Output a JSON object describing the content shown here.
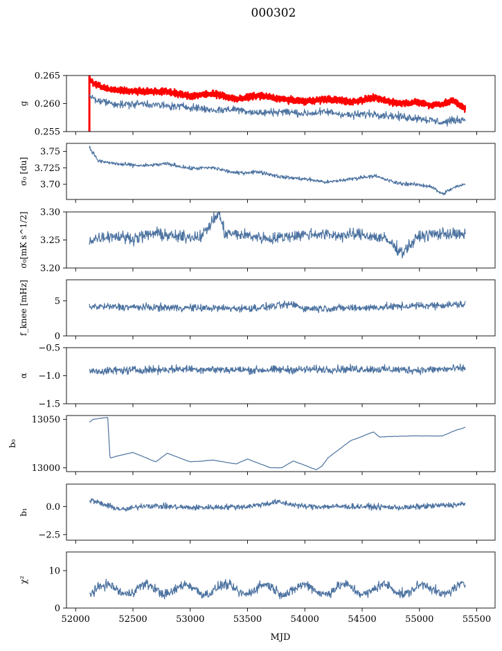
{
  "figure": {
    "title": "000302",
    "xlabel": "MJD",
    "xlim": [
      51920,
      55660
    ],
    "xticks": [
      52000,
      52500,
      53000,
      53500,
      54000,
      54500,
      55000,
      55500
    ],
    "line_color": "#4c72a0",
    "highlight_color": "#ff0000",
    "x_start": 52120,
    "x_end": 55400
  },
  "chart_data": [
    {
      "type": "line",
      "panel": "g",
      "ylabel": "g",
      "ylim": [
        0.255,
        0.265
      ],
      "yticks": [
        0.255,
        0.26,
        0.265
      ],
      "ytick_labels": [
        "0.255",
        "0.260",
        "0.265"
      ],
      "series": [
        {
          "role": "red",
          "x": [
            52120,
            52160,
            52300,
            52500,
            52800,
            53000,
            53200,
            53400,
            53600,
            53800,
            54000,
            54200,
            54400,
            54600,
            54800,
            55000,
            55100,
            55200,
            55300,
            55400
          ],
          "values": [
            0.2645,
            0.2635,
            0.2625,
            0.2622,
            0.2621,
            0.2613,
            0.2618,
            0.2608,
            0.2614,
            0.2608,
            0.2604,
            0.2608,
            0.2603,
            0.261,
            0.2601,
            0.2602,
            0.2597,
            0.2599,
            0.2605,
            0.259
          ]
        },
        {
          "role": "blue",
          "x": [
            52120,
            52200,
            52400,
            52600,
            52800,
            53000,
            53200,
            53400,
            53600,
            53800,
            54000,
            54200,
            54400,
            54600,
            54800,
            55000,
            55200,
            55300,
            55400
          ],
          "values": [
            0.2613,
            0.2605,
            0.2598,
            0.26,
            0.2595,
            0.2594,
            0.2588,
            0.259,
            0.2583,
            0.2586,
            0.2582,
            0.2585,
            0.2579,
            0.2582,
            0.2577,
            0.2574,
            0.2566,
            0.257,
            0.2572
          ]
        }
      ]
    },
    {
      "type": "line",
      "panel": "sigma0_du",
      "ylabel": "σ₀ [du]",
      "ylim": [
        3.677,
        3.762
      ],
      "yticks": [
        3.7,
        3.725,
        3.75
      ],
      "ytick_labels": [
        "3.70",
        "3.725",
        "3.75"
      ],
      "series": [
        {
          "x": [
            52120,
            52200,
            52400,
            52600,
            52800,
            53000,
            53200,
            53400,
            53600,
            53800,
            54000,
            54200,
            54400,
            54600,
            54800,
            55000,
            55100,
            55200,
            55300,
            55400
          ],
          "values": [
            3.756,
            3.735,
            3.73,
            3.728,
            3.731,
            3.724,
            3.725,
            3.717,
            3.719,
            3.711,
            3.708,
            3.703,
            3.708,
            3.713,
            3.702,
            3.699,
            3.697,
            3.685,
            3.695,
            3.7
          ]
        }
      ]
    },
    {
      "type": "line",
      "panel": "sigma0_mK",
      "ylabel": "σ₀[mK s^1/2]",
      "ylim": [
        3.2,
        3.3
      ],
      "yticks": [
        3.2,
        3.25,
        3.3
      ],
      "ytick_labels": [
        "3.20",
        "3.25",
        "3.30"
      ],
      "series": [
        {
          "x": [
            52120,
            52300,
            52500,
            52700,
            52900,
            53100,
            53250,
            53300,
            53500,
            53700,
            53900,
            54100,
            54300,
            54500,
            54700,
            54850,
            55000,
            55200,
            55400
          ],
          "values": [
            3.25,
            3.258,
            3.253,
            3.262,
            3.255,
            3.257,
            3.298,
            3.262,
            3.258,
            3.252,
            3.258,
            3.261,
            3.258,
            3.26,
            3.252,
            3.228,
            3.257,
            3.262,
            3.258
          ]
        }
      ]
    },
    {
      "type": "line",
      "panel": "fknee",
      "ylabel": "f_knee [mHz]",
      "ylim": [
        0,
        8
      ],
      "yticks": [
        0,
        5
      ],
      "ytick_labels": [
        "0",
        "5"
      ],
      "series": [
        {
          "x": [
            52120,
            52500,
            53000,
            53500,
            53900,
            54000,
            54500,
            55000,
            55400
          ],
          "values": [
            4.2,
            4.1,
            4.0,
            3.9,
            4.5,
            3.9,
            4.0,
            4.3,
            4.5
          ]
        }
      ]
    },
    {
      "type": "line",
      "panel": "alpha",
      "ylabel": "α",
      "ylim": [
        -1.5,
        -0.5
      ],
      "yticks": [
        -1.5,
        -1.0,
        -0.5
      ],
      "ytick_labels": [
        "−1.5",
        "−1.0",
        "−0.5"
      ],
      "series": [
        {
          "x": [
            52120,
            52500,
            53000,
            53500,
            54000,
            54500,
            55000,
            55400
          ],
          "values": [
            -0.92,
            -0.9,
            -0.88,
            -0.9,
            -0.89,
            -0.88,
            -0.9,
            -0.87
          ]
        }
      ]
    },
    {
      "type": "line",
      "panel": "b0",
      "ylabel": "b₀",
      "ylim": [
        12996,
        13054
      ],
      "yticks": [
        13000,
        13050
      ],
      "ytick_labels": [
        "13000",
        "13050"
      ],
      "series": [
        {
          "x": [
            52120,
            52150,
            52280,
            52300,
            52500,
            52700,
            52800,
            53000,
            53200,
            53400,
            53500,
            53700,
            53800,
            53900,
            54100,
            54150,
            54200,
            54400,
            54600,
            54650,
            55000,
            55200,
            55300,
            55400
          ],
          "values": [
            13047,
            13050,
            13052,
            13010,
            13016,
            13006,
            13015,
            13006,
            13008,
            13004,
            13009,
            13000,
            13000,
            13007,
            12998,
            13002,
            13010,
            13028,
            13037,
            13032,
            13033,
            13033,
            13038,
            13042
          ]
        }
      ]
    },
    {
      "type": "line",
      "panel": "b1",
      "ylabel": "b₁",
      "ylim": [
        -3.0,
        2.0
      ],
      "yticks": [
        -2.5,
        0.0
      ],
      "ytick_labels": [
        "−2.5",
        "0.0"
      ],
      "series": [
        {
          "x": [
            52120,
            52300,
            52420,
            52600,
            53000,
            53500,
            53760,
            54000,
            54500,
            54900,
            55000,
            55400
          ],
          "values": [
            0.6,
            0.0,
            -0.3,
            0.1,
            -0.1,
            0.0,
            0.4,
            0.0,
            0.0,
            -0.1,
            0.0,
            0.2
          ]
        }
      ]
    },
    {
      "type": "line",
      "panel": "chi2",
      "ylabel": "χ²",
      "ylim": [
        0,
        15
      ],
      "yticks": [
        0,
        10
      ],
      "ytick_labels": [
        "0",
        "10"
      ],
      "series": [
        {
          "x": [
            52120,
            55400
          ],
          "values": [
            5.0,
            5.0
          ]
        }
      ]
    }
  ]
}
